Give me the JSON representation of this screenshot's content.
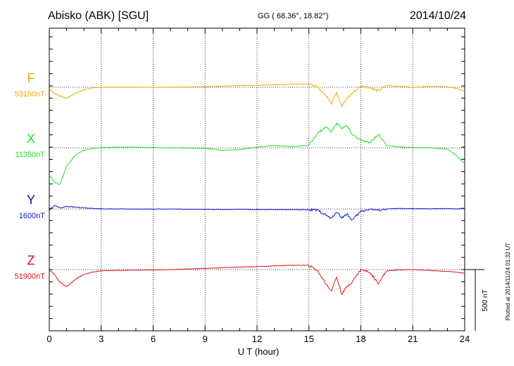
{
  "header": {
    "station": "Abisko (ABK)  [SGU]",
    "coords": "GG ( 68.36°,  18.82°)",
    "date": "2014/10/24"
  },
  "footer": {
    "plotted": "Plotted at 2014/11/24 01:32 UT"
  },
  "chart_data": {
    "type": "line",
    "title": "Abisko (ABK)  [SGU]",
    "xlabel": "U T (hour)",
    "ylabel": "",
    "xlim": [
      0,
      24
    ],
    "x_ticks": [
      0,
      3,
      6,
      9,
      12,
      15,
      18,
      21,
      24
    ],
    "x_tick_labels": [
      "0",
      "3",
      "6",
      "9",
      "12",
      "15",
      "18",
      "21",
      "24"
    ],
    "grid": true,
    "scale_bar": {
      "label": "500 nT",
      "value": 500,
      "unit": "nT"
    },
    "units": "nT",
    "x": [
      0,
      0.3,
      0.6,
      1,
      1.5,
      2,
      2.5,
      3,
      4,
      5,
      6,
      7,
      8,
      9,
      10,
      11,
      12,
      13,
      14,
      15,
      15.5,
      16,
      16.3,
      16.6,
      16.9,
      17.2,
      17.5,
      18,
      18.5,
      19,
      19.5,
      20,
      21,
      22,
      23,
      23.5,
      24
    ],
    "series": [
      {
        "name": "F",
        "color": "#f5a800",
        "baseline_label": "53150nT",
        "baseline": 53150,
        "values": [
          53140,
          53100,
          53080,
          53060,
          53100,
          53130,
          53145,
          53150,
          53152,
          53152,
          53150,
          53152,
          53152,
          53155,
          53160,
          53165,
          53165,
          53170,
          53175,
          53178,
          53150,
          53080,
          53020,
          53110,
          53000,
          53060,
          53100,
          53160,
          53150,
          53120,
          53165,
          53160,
          53150,
          53158,
          53155,
          53140,
          53120
        ]
      },
      {
        "name": "X",
        "color": "#22dd22",
        "baseline_label": "11350nT",
        "baseline": 11350,
        "values": [
          11130,
          11070,
          11050,
          11200,
          11290,
          11330,
          11345,
          11352,
          11355,
          11355,
          11352,
          11350,
          11348,
          11345,
          11330,
          11335,
          11355,
          11370,
          11360,
          11370,
          11470,
          11520,
          11480,
          11550,
          11510,
          11530,
          11460,
          11410,
          11390,
          11460,
          11370,
          11360,
          11352,
          11350,
          11340,
          11290,
          11220
        ]
      },
      {
        "name": "Y",
        "color": "#1010cc",
        "baseline_label": "1600nT",
        "baseline": 1600,
        "values": [
          1590,
          1630,
          1610,
          1620,
          1615,
          1610,
          1605,
          1602,
          1600,
          1600,
          1600,
          1600,
          1598,
          1598,
          1596,
          1598,
          1596,
          1596,
          1595,
          1594,
          1590,
          1550,
          1520,
          1580,
          1530,
          1560,
          1510,
          1580,
          1600,
          1590,
          1600,
          1604,
          1603,
          1602,
          1604,
          1600,
          1606
        ]
      },
      {
        "name": "Z",
        "color": "#e01010",
        "baseline_label": "51900nT",
        "baseline": 51900,
        "values": [
          51900,
          51860,
          51800,
          51760,
          51820,
          51860,
          51880,
          51890,
          51893,
          51895,
          51897,
          51900,
          51905,
          51910,
          51915,
          51920,
          51925,
          51930,
          51935,
          51935,
          51890,
          51780,
          51730,
          51840,
          51700,
          51760,
          51800,
          51900,
          51880,
          51790,
          51890,
          51895,
          51900,
          51892,
          51885,
          51880,
          51870
        ]
      }
    ]
  }
}
